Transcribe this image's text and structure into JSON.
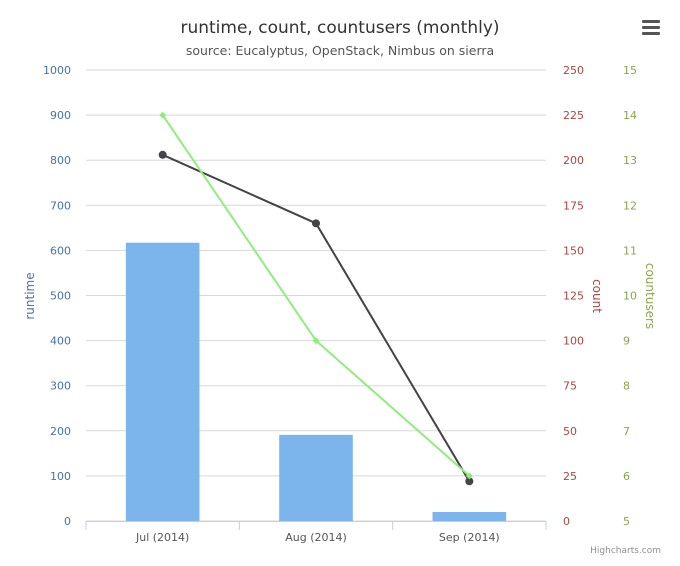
{
  "chart_data": {
    "type": "bar+line",
    "title": "runtime, count, countusers (monthly)",
    "subtitle": "source: Eucalyptus, OpenStack, Nimbus on sierra",
    "categories": [
      "Jul (2014)",
      "Aug (2014)",
      "Sep (2014)"
    ],
    "series": [
      {
        "name": "runtime",
        "kind": "column",
        "axis": "runtime",
        "color": "#7cb5ec",
        "values": [
          617,
          191,
          20
        ]
      },
      {
        "name": "count",
        "kind": "line",
        "axis": "count",
        "color": "#434348",
        "values": [
          203,
          165,
          22
        ]
      },
      {
        "name": "countusers",
        "kind": "line",
        "axis": "countusers",
        "color": "#90ed7d",
        "values": [
          14,
          9,
          6
        ]
      }
    ],
    "axes": {
      "runtime": {
        "label": "runtime",
        "color": "#4572a7",
        "range": [
          0,
          1000
        ],
        "ticks": [
          "0",
          "100",
          "200",
          "300",
          "400",
          "500",
          "600",
          "700",
          "800",
          "900",
          "1000"
        ]
      },
      "count": {
        "label": "count",
        "color": "#aa4643",
        "range": [
          0,
          250
        ],
        "ticks": [
          "0",
          "25",
          "50",
          "75",
          "100",
          "125",
          "150",
          "175",
          "200",
          "225",
          "250"
        ]
      },
      "countusers": {
        "label": "countusers",
        "color": "#89a54e",
        "range": [
          5,
          15
        ],
        "ticks": [
          "5",
          "6",
          "7",
          "8",
          "9",
          "10",
          "11",
          "12",
          "13",
          "14",
          "15"
        ]
      }
    },
    "grid": true,
    "legend": "none"
  },
  "credits": "Highcharts.com",
  "icons": {
    "menu": "hamburger-menu-icon"
  }
}
